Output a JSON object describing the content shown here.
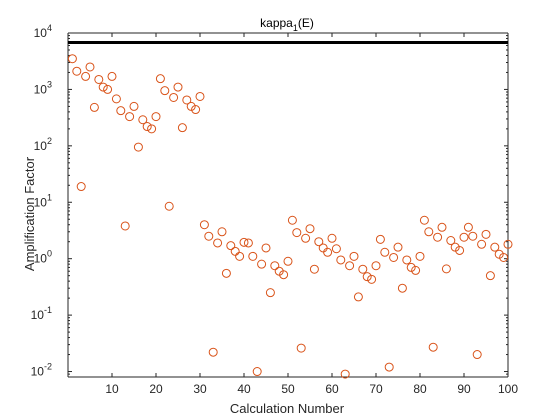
{
  "chart_data": {
    "type": "scatter",
    "title_prefix": "kappa",
    "title_sub": "1",
    "title_suffix": "(E)",
    "xlabel": "Calculation Number",
    "ylabel": "Amplification Factor",
    "xlim": [
      0,
      100
    ],
    "ylim": [
      0.008,
      10000
    ],
    "yscale": "log",
    "xticks": [
      10,
      20,
      30,
      40,
      50,
      60,
      70,
      80,
      90,
      100
    ],
    "yticks": [
      {
        "value": 0.01,
        "base": "10",
        "exp": "-2"
      },
      {
        "value": 0.1,
        "base": "10",
        "exp": "-1"
      },
      {
        "value": 1,
        "base": "10",
        "exp": "0"
      },
      {
        "value": 10,
        "base": "10",
        "exp": "1"
      },
      {
        "value": 100,
        "base": "10",
        "exp": "2"
      },
      {
        "value": 1000,
        "base": "10",
        "exp": "3"
      },
      {
        "value": 10000,
        "base": "10",
        "exp": "4"
      }
    ],
    "grid": false,
    "colors": {
      "marker": "#d95319",
      "hline": "#000000",
      "axis": "#262626"
    },
    "reference_line": {
      "y": 6800
    },
    "series": [
      {
        "marker": "circle-open",
        "points": [
          [
            1,
            3500
          ],
          [
            2,
            2100
          ],
          [
            3,
            19
          ],
          [
            4,
            1700
          ],
          [
            5,
            2500
          ],
          [
            6,
            480
          ],
          [
            7,
            1500
          ],
          [
            8,
            1100
          ],
          [
            9,
            1000
          ],
          [
            10,
            1700
          ],
          [
            11,
            680
          ],
          [
            12,
            420
          ],
          [
            13,
            3.8
          ],
          [
            14,
            330
          ],
          [
            15,
            500
          ],
          [
            16,
            95
          ],
          [
            17,
            290
          ],
          [
            18,
            220
          ],
          [
            19,
            200
          ],
          [
            20,
            330
          ],
          [
            21,
            1550
          ],
          [
            22,
            950
          ],
          [
            23,
            8.5
          ],
          [
            24,
            720
          ],
          [
            25,
            1100
          ],
          [
            26,
            210
          ],
          [
            27,
            650
          ],
          [
            28,
            500
          ],
          [
            29,
            440
          ],
          [
            30,
            750
          ],
          [
            31,
            4.0
          ],
          [
            32,
            2.5
          ],
          [
            33,
            0.022
          ],
          [
            34,
            1.9
          ],
          [
            35,
            3.0
          ],
          [
            36,
            0.55
          ],
          [
            37,
            1.7
          ],
          [
            38,
            1.35
          ],
          [
            39,
            1.1
          ],
          [
            40,
            1.95
          ],
          [
            41,
            1.9
          ],
          [
            42,
            1.1
          ],
          [
            43,
            0.01
          ],
          [
            44,
            0.8
          ],
          [
            45,
            1.55
          ],
          [
            46,
            0.25
          ],
          [
            47,
            0.75
          ],
          [
            48,
            0.6
          ],
          [
            49,
            0.52
          ],
          [
            50,
            0.9
          ],
          [
            51,
            4.8
          ],
          [
            52,
            2.9
          ],
          [
            53,
            0.026
          ],
          [
            54,
            2.3
          ],
          [
            55,
            3.4
          ],
          [
            56,
            0.65
          ],
          [
            57,
            2.0
          ],
          [
            58,
            1.55
          ],
          [
            59,
            1.3
          ],
          [
            60,
            2.3
          ],
          [
            61,
            1.5
          ],
          [
            62,
            0.95
          ],
          [
            63,
            0.009
          ],
          [
            64,
            0.75
          ],
          [
            65,
            1.1
          ],
          [
            66,
            0.21
          ],
          [
            67,
            0.65
          ],
          [
            68,
            0.48
          ],
          [
            69,
            0.43
          ],
          [
            70,
            0.75
          ],
          [
            71,
            2.2
          ],
          [
            72,
            1.3
          ],
          [
            73,
            0.012
          ],
          [
            74,
            1.05
          ],
          [
            75,
            1.6
          ],
          [
            76,
            0.3
          ],
          [
            77,
            0.95
          ],
          [
            78,
            0.7
          ],
          [
            79,
            0.62
          ],
          [
            80,
            1.1
          ],
          [
            81,
            4.8
          ],
          [
            82,
            3.0
          ],
          [
            83,
            0.027
          ],
          [
            84,
            2.4
          ],
          [
            85,
            3.6
          ],
          [
            86,
            0.66
          ],
          [
            87,
            2.1
          ],
          [
            88,
            1.6
          ],
          [
            89,
            1.4
          ],
          [
            90,
            2.4
          ],
          [
            91,
            3.6
          ],
          [
            92,
            2.5
          ],
          [
            93,
            0.02
          ],
          [
            94,
            1.8
          ],
          [
            95,
            2.7
          ],
          [
            96,
            0.5
          ],
          [
            97,
            1.6
          ],
          [
            98,
            1.2
          ],
          [
            99,
            1.05
          ],
          [
            100,
            1.8
          ]
        ]
      }
    ]
  }
}
